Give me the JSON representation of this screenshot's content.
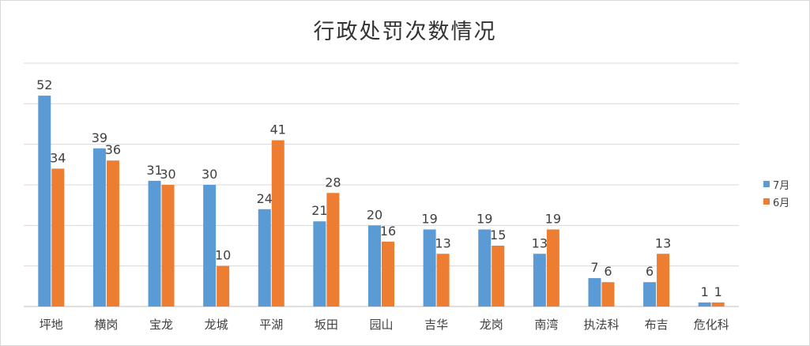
{
  "chart_data": {
    "type": "bar",
    "title": "行政处罚次数情况",
    "categories": [
      "坪地",
      "横岗",
      "宝龙",
      "龙城",
      "平湖",
      "坂田",
      "园山",
      "吉华",
      "龙岗",
      "南湾",
      "执法科",
      "布吉",
      "危化科"
    ],
    "series": [
      {
        "name": "7月",
        "color": "#5B9BD5",
        "values": [
          52,
          39,
          31,
          30,
          24,
          21,
          20,
          19,
          19,
          13,
          7,
          6,
          1
        ]
      },
      {
        "name": "6月",
        "color": "#ED7D31",
        "values": [
          34,
          36,
          30,
          10,
          41,
          28,
          16,
          13,
          15,
          19,
          6,
          13,
          1
        ]
      }
    ],
    "ylim": [
      0,
      60
    ],
    "grid": true,
    "legend_position": "right"
  }
}
